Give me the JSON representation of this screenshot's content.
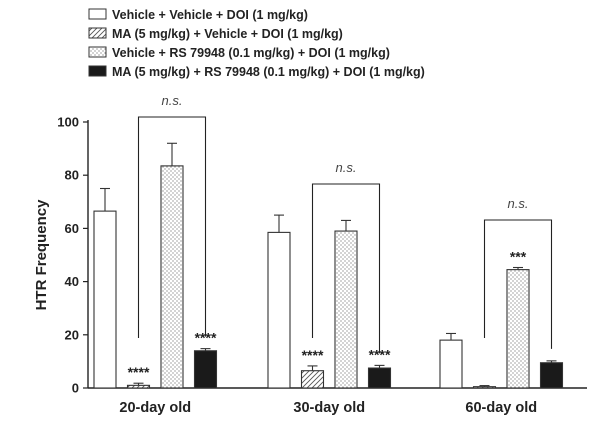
{
  "chart_data": {
    "type": "bar",
    "categories": [
      "20-day old",
      "30-day old",
      "60-day old"
    ],
    "ylabel": "HTR Frequency",
    "ylim": [
      0,
      100
    ],
    "yticks": [
      0,
      20,
      40,
      60,
      80,
      100
    ],
    "grid": false,
    "legend_position": "top-left",
    "series": [
      {
        "name": "Vehicle + Vehicle + DOI (1 mg/kg)",
        "pattern": "white",
        "values": [
          66.5,
          58.5,
          18.0
        ],
        "errors": [
          8.5,
          6.5,
          2.5
        ],
        "sig": [
          "",
          "",
          ""
        ]
      },
      {
        "name": "MA (5 mg/kg) + Vehicle + DOI (1 mg/kg)",
        "pattern": "hatch",
        "values": [
          1.0,
          6.5,
          0.5
        ],
        "errors": [
          0.8,
          1.8,
          0.4
        ],
        "sig": [
          "****",
          "****",
          ""
        ]
      },
      {
        "name": "Vehicle + RS 79948 (0.1 mg/kg) + DOI (1 mg/kg)",
        "pattern": "dots",
        "values": [
          83.5,
          59.0,
          44.5
        ],
        "errors": [
          8.5,
          4.0,
          0.8
        ],
        "sig": [
          "",
          "",
          "***"
        ]
      },
      {
        "name": "MA (5 mg/kg) + RS 79948 (0.1 mg/kg) + DOI (1 mg/kg)",
        "pattern": "black",
        "values": [
          14.0,
          7.5,
          9.5
        ],
        "errors": [
          0.8,
          1.0,
          0.7
        ],
        "sig": [
          "****",
          "****",
          ""
        ]
      }
    ],
    "annotations": [
      {
        "category": "20-day old",
        "from_series": 1,
        "to_series": 3,
        "text": "n.s."
      },
      {
        "category": "30-day old",
        "from_series": 1,
        "to_series": 3,
        "text": "n.s."
      },
      {
        "category": "60-day old",
        "from_series": 1,
        "to_series": 3,
        "text": "n.s."
      }
    ]
  },
  "colors": {
    "axis": "#222222",
    "bar_outline": "#333333",
    "black_fill": "#1a1a1a",
    "pattern_ink": "#555555"
  }
}
